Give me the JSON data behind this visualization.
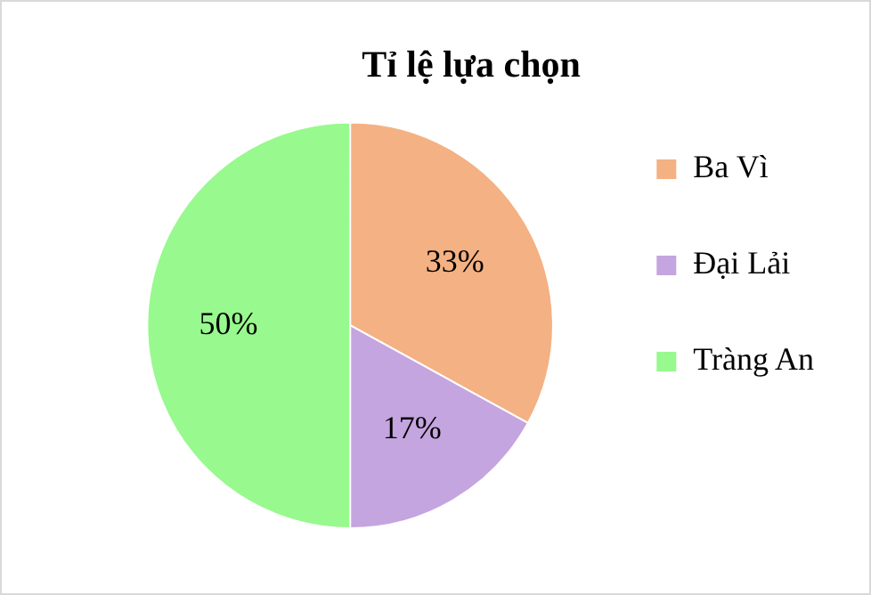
{
  "chart_data": {
    "type": "pie",
    "title": "Tỉ lệ lựa chọn",
    "categories": [
      "Ba Vì",
      "Đại Lải",
      "Tràng An"
    ],
    "values": [
      33,
      17,
      50
    ],
    "colors": [
      "#f4b183",
      "#c4a5df",
      "#98f98e"
    ],
    "value_labels": [
      "33%",
      "17%",
      "50%"
    ],
    "legend": "right"
  }
}
